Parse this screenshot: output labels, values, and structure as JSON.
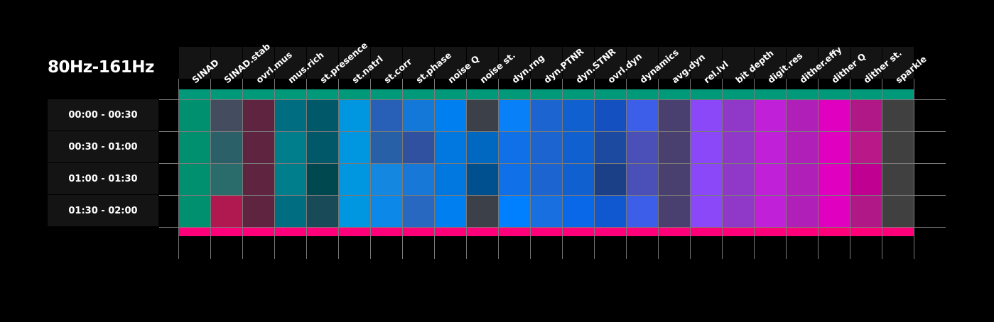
{
  "chart_data": {
    "type": "heatmap",
    "title": "80Hz-161Hz",
    "columns": [
      "SINAD",
      "SINAD.stab",
      "ovrl.mus",
      "mus.rich",
      "st.presence",
      "st.natrl",
      "st.corr",
      "st.phase",
      "noise Q",
      "noise st.",
      "dyn.rng",
      "dyn.PTNR",
      "dyn.STNR",
      "ovrl.dyn",
      "dynamics",
      "avg.dyn",
      "rel.lvl",
      "bit depth",
      "digit.res",
      "dither.effy",
      "dither Q",
      "dither st.",
      "sparkle"
    ],
    "rows": [
      "00:00 - 00:30",
      "00:30 - 01:00",
      "01:00 - 01:30",
      "01:30 - 02:00"
    ],
    "cell_colors": [
      [
        "#009070",
        "#444c60",
        "#5e2440",
        "#006e80",
        "#005868",
        "#0096e0",
        "#2860b8",
        "#1478d8",
        "#0080f0",
        "#3c4048",
        "#0880f8",
        "#1c64d0",
        "#1060d0",
        "#1450c0",
        "#3c5ee8",
        "#4a4070",
        "#8a48f8",
        "#9038c8",
        "#c020d8",
        "#b020b8",
        "#e000c0",
        "#b01888",
        "#404040"
      ],
      [
        "#009070",
        "#2c6068",
        "#5e2440",
        "#007e8c",
        "#005868",
        "#0096e0",
        "#2860a8",
        "#3050a0",
        "#0078e0",
        "#0068c0",
        "#1070e8",
        "#1c64d0",
        "#1060d0",
        "#1c4aa0",
        "#4a50b8",
        "#4a4070",
        "#8a48f8",
        "#9038c8",
        "#c020d8",
        "#b020b8",
        "#e000c0",
        "#b81888",
        "#404040"
      ],
      [
        "#009070",
        "#2a6c6c",
        "#5e2440",
        "#007e8c",
        "#004850",
        "#0096e0",
        "#1488e0",
        "#1878d8",
        "#0078e0",
        "#005090",
        "#1070e8",
        "#1c64d0",
        "#1060d0",
        "#1c4088",
        "#4a50b8",
        "#4a4070",
        "#8a48f8",
        "#9038c8",
        "#c020d8",
        "#b020b8",
        "#e000c0",
        "#c00090",
        "#404040"
      ],
      [
        "#009070",
        "#b01850",
        "#5e2440",
        "#006e80",
        "#184a58",
        "#0096e0",
        "#0c88e8",
        "#2868c0",
        "#0080f0",
        "#3c4048",
        "#0080ff",
        "#1870e0",
        "#0868e8",
        "#1058d0",
        "#3c5ee8",
        "#4a4070",
        "#8a48f8",
        "#9038c8",
        "#c020d8",
        "#b020b8",
        "#e000c0",
        "#b01888",
        "#404040"
      ]
    ],
    "top_strip_color": "#00997a",
    "bottom_strip_color": "#ff007a",
    "grid": true,
    "legend": "none"
  }
}
